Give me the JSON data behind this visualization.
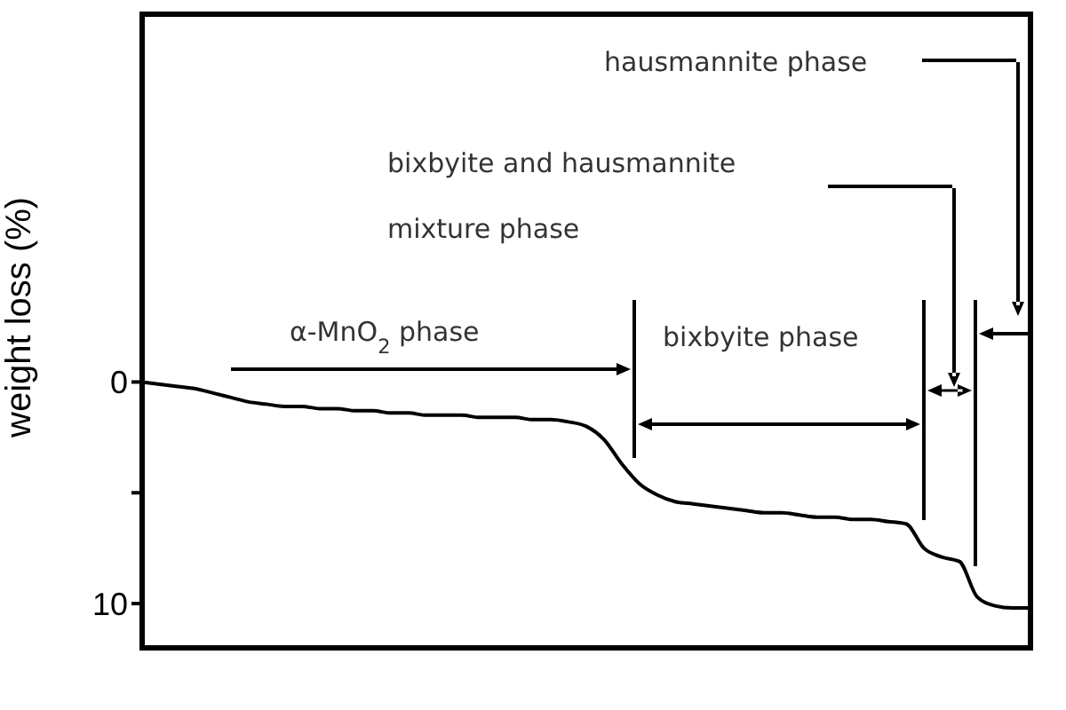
{
  "chart_data": {
    "type": "line",
    "ylabel": "weight loss (%)",
    "categories": [
      null,
      null,
      null,
      null,
      null,
      null,
      null,
      null,
      null,
      null,
      null,
      null,
      null,
      null,
      null,
      null,
      null,
      null,
      null,
      null,
      null,
      null,
      null,
      null,
      null,
      null,
      null,
      null,
      null,
      null,
      null,
      null,
      null,
      null,
      null,
      null,
      null,
      null,
      null,
      null,
      null,
      null,
      null,
      null,
      null,
      null,
      null,
      null,
      null,
      null,
      null
    ],
    "values": [
      0.0,
      0.1,
      0.2,
      0.3,
      0.5,
      0.7,
      0.9,
      1.0,
      1.1,
      1.1,
      1.2,
      1.2,
      1.3,
      1.3,
      1.4,
      1.4,
      1.5,
      1.5,
      1.5,
      1.6,
      1.6,
      1.6,
      1.7,
      1.7,
      1.8,
      2.0,
      2.6,
      3.7,
      4.6,
      5.1,
      5.4,
      5.5,
      5.6,
      5.7,
      5.8,
      5.9,
      5.9,
      6.0,
      6.1,
      6.1,
      6.2,
      6.2,
      6.3,
      6.4,
      7.5,
      7.9,
      8.1,
      9.7,
      10.1,
      10.2,
      10.2
    ],
    "color": "#000000",
    "ylim": [
      12,
      -16.6
    ],
    "yticks": [
      0,
      {
        "value": 5,
        "label": null
      },
      10
    ],
    "annotations": [
      "hausmannite phase",
      "bixbyite and hausmannite",
      "mixture phase",
      "α-MnO$_{2}$ phase",
      "bixbyite phase"
    ]
  }
}
